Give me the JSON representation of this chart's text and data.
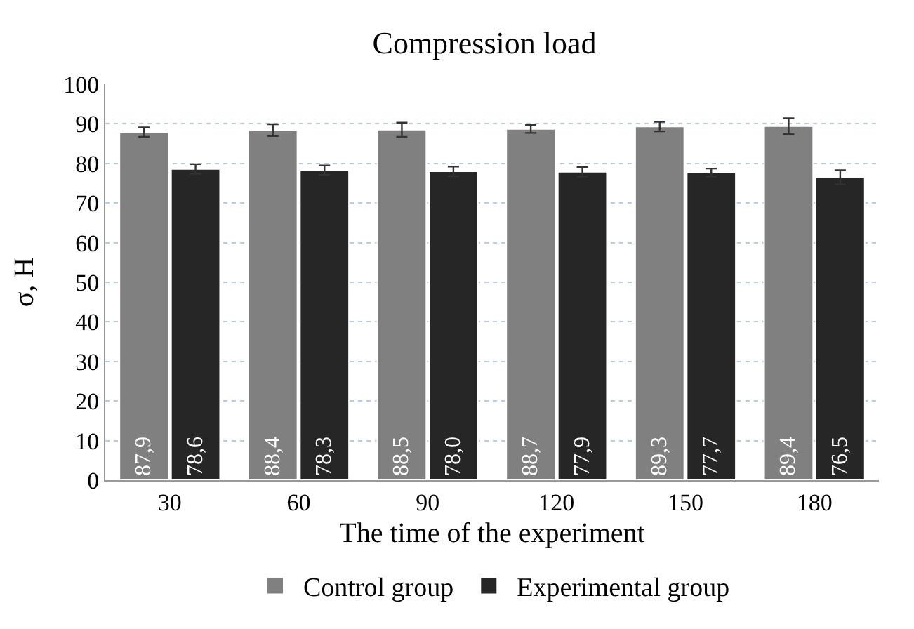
{
  "chart_data": {
    "type": "bar",
    "title": "Compression load",
    "xlabel": "The time of the experiment",
    "ylabel": "σ, H",
    "categories": [
      "30",
      "60",
      "90",
      "120",
      "150",
      "180"
    ],
    "series": [
      {
        "name": "Control group",
        "color": "#808080",
        "values": [
          87.9,
          88.4,
          88.5,
          88.7,
          89.3,
          89.4
        ],
        "errors": [
          1.2,
          1.5,
          1.8,
          1.0,
          1.2,
          2.0
        ],
        "value_labels": [
          "87,9",
          "88,4",
          "88,5",
          "88,7",
          "89,3",
          "89,4"
        ]
      },
      {
        "name": "Experimental group",
        "color": "#262626",
        "values": [
          78.6,
          78.3,
          78.0,
          77.9,
          77.7,
          76.5
        ],
        "errors": [
          1.2,
          1.2,
          1.2,
          1.2,
          1.0,
          1.8
        ],
        "value_labels": [
          "78,6",
          "78,3",
          "78,0",
          "77,9",
          "77,7",
          "76,5"
        ]
      }
    ],
    "ylim": [
      0,
      100
    ],
    "yticks": [
      0,
      10,
      20,
      30,
      40,
      50,
      60,
      70,
      80,
      90,
      100
    ],
    "grid": "y",
    "legend": "bottom"
  }
}
